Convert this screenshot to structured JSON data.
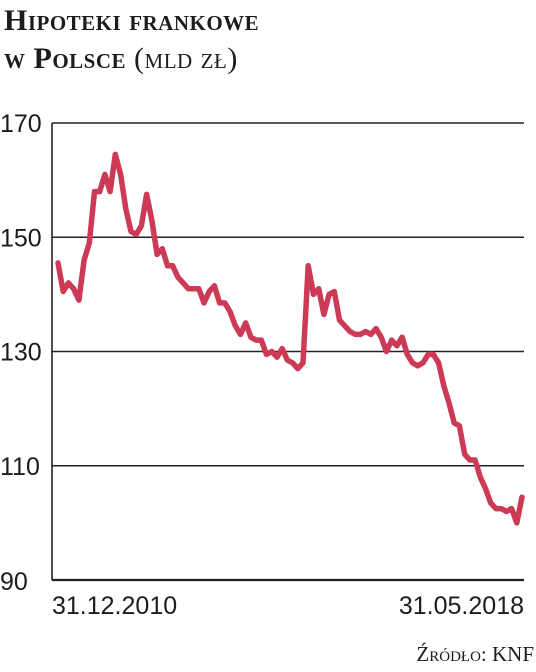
{
  "title": {
    "line1": "Hipoteki frankowe",
    "line2": "w Polsce",
    "unit": "(mld zł)"
  },
  "source": "Źródło: KNF",
  "colors": {
    "line": "#cc3a56",
    "grid": "#222222",
    "text": "#1c1c1c"
  },
  "chart_data": {
    "type": "line",
    "title": "Hipoteki frankowe w Polsce (mld zł)",
    "xlabel": "",
    "ylabel": "",
    "ylim": [
      90,
      170
    ],
    "yticks": [
      170,
      150,
      130,
      110,
      90
    ],
    "xtick_labels": [
      "31.12.2010",
      "31.05.2018"
    ],
    "grid": true,
    "legend": "none",
    "series": [
      {
        "values": [
          145.5,
          140.5,
          142,
          141,
          139,
          146,
          149,
          158,
          158,
          161,
          158,
          164.5,
          161,
          155,
          151,
          150.5,
          152,
          157.5,
          153,
          147,
          148,
          145,
          145,
          143,
          142,
          141,
          141,
          141,
          138.5,
          140.5,
          141.5,
          138.5,
          138.5,
          137,
          134.5,
          133,
          135,
          132.5,
          132,
          132,
          129.5,
          130,
          129,
          130.5,
          128.5,
          128,
          127,
          128,
          145,
          140,
          141,
          136.5,
          140,
          140.5,
          135.5,
          134.5,
          133.5,
          133,
          133,
          133.5,
          133,
          134,
          132.5,
          130,
          132,
          131,
          132.5,
          129.5,
          128,
          127.5,
          128,
          129.5,
          129.5,
          128,
          124,
          121,
          117.5,
          117,
          112,
          111,
          111,
          108,
          106,
          103.5,
          102.5,
          102.5,
          102,
          102.5,
          100,
          104.5
        ]
      }
    ]
  }
}
